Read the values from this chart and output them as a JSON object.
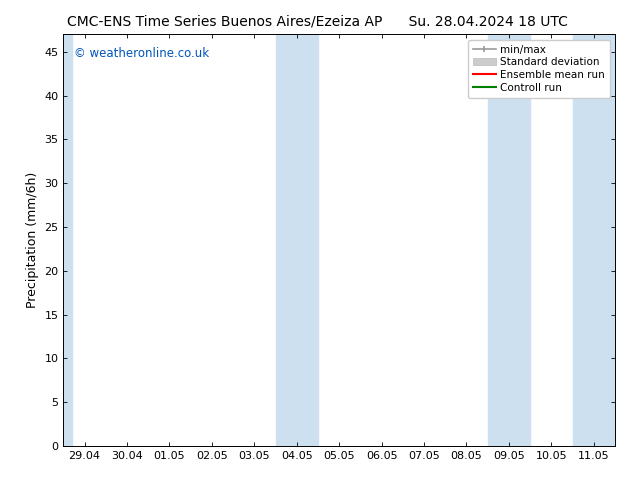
{
  "title_left": "CMC-ENS Time Series Buenos Aires/Ezeiza AP",
  "title_right": "Su. 28.04.2024 18 UTC",
  "ylabel": "Precipitation (mm/6h)",
  "watermark": "© weatheronline.co.uk",
  "watermark_color": "#0055bb",
  "x_tick_labels": [
    "29.04",
    "30.04",
    "01.05",
    "02.05",
    "03.05",
    "04.05",
    "05.05",
    "06.05",
    "07.05",
    "08.05",
    "09.05",
    "10.05",
    "11.05"
  ],
  "x_tick_positions": [
    0,
    1,
    2,
    3,
    4,
    5,
    6,
    7,
    8,
    9,
    10,
    11,
    12
  ],
  "ylim": [
    0,
    47
  ],
  "yticks": [
    0,
    5,
    10,
    15,
    20,
    25,
    30,
    35,
    40,
    45
  ],
  "xlim": [
    -0.5,
    12.5
  ],
  "shaded_regions": [
    {
      "x_start": -0.5,
      "x_end": -0.3,
      "color": "#cde0f0",
      "alpha": 1.0
    },
    {
      "x_start": 4.5,
      "x_end": 5.5,
      "color": "#cde0f0",
      "alpha": 1.0
    },
    {
      "x_start": 9.5,
      "x_end": 10.5,
      "color": "#cde0f0",
      "alpha": 1.0
    },
    {
      "x_start": 11.5,
      "x_end": 12.5,
      "color": "#cde0f0",
      "alpha": 1.0
    }
  ],
  "legend_entries": [
    {
      "label": "min/max",
      "color": "#aaaaaa",
      "lw": 1.5
    },
    {
      "label": "Standard deviation",
      "color": "#cccccc",
      "lw": 6
    },
    {
      "label": "Ensemble mean run",
      "color": "red",
      "lw": 1.5
    },
    {
      "label": "Controll run",
      "color": "green",
      "lw": 1.5
    }
  ],
  "bg_color": "#ffffff",
  "plot_bg_color": "#ffffff",
  "title_fontsize": 10,
  "axis_fontsize": 9,
  "tick_fontsize": 8
}
